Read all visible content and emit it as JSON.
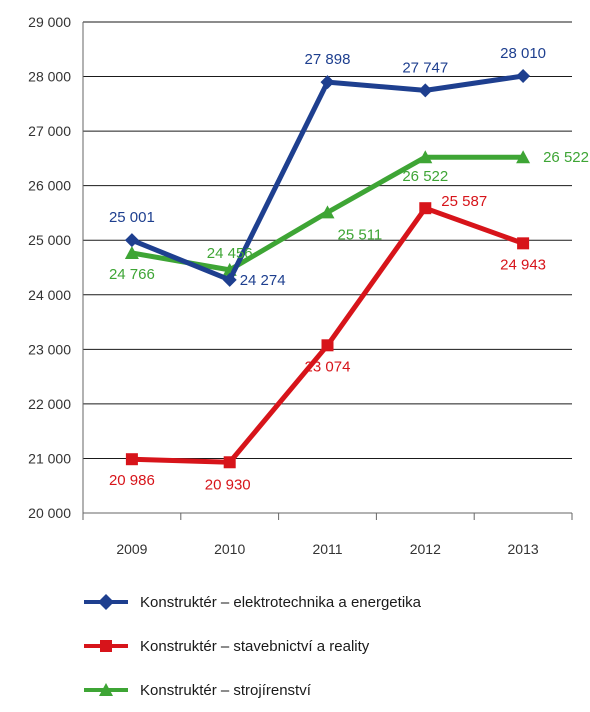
{
  "chart_data": {
    "type": "line",
    "categories": [
      "2009",
      "2010",
      "2011",
      "2012",
      "2013"
    ],
    "y_ticks": [
      "20 000",
      "21 000",
      "22 000",
      "23 000",
      "24 000",
      "25 000",
      "26 000",
      "27 000",
      "28 000",
      "29 000"
    ],
    "ylim": [
      20000,
      29000
    ],
    "grid": true,
    "legend_position": "bottom",
    "series": [
      {
        "name": "Konstruktér – elektrotechnika a energetika",
        "values": [
          25001,
          24274,
          27898,
          27747,
          28010
        ],
        "labels": [
          "25 001",
          "24 274",
          "27 898",
          "27 747",
          "28 010"
        ],
        "color": "#1e3f8f",
        "marker": "diamond"
      },
      {
        "name": "Konstruktér – stavebnictví a reality",
        "values": [
          20986,
          20930,
          23074,
          25587,
          24943
        ],
        "labels": [
          "20 986",
          "20 930",
          "23 074",
          "25 587",
          "24 943"
        ],
        "color": "#d7141a",
        "marker": "square"
      },
      {
        "name": "Konstruktér – strojírenství",
        "values": [
          24766,
          24456,
          25511,
          26522,
          26522
        ],
        "labels": [
          "24 766",
          "24 456",
          "25 511",
          "26 522",
          "26 522"
        ],
        "color": "#3ea535",
        "marker": "triangle"
      }
    ]
  }
}
